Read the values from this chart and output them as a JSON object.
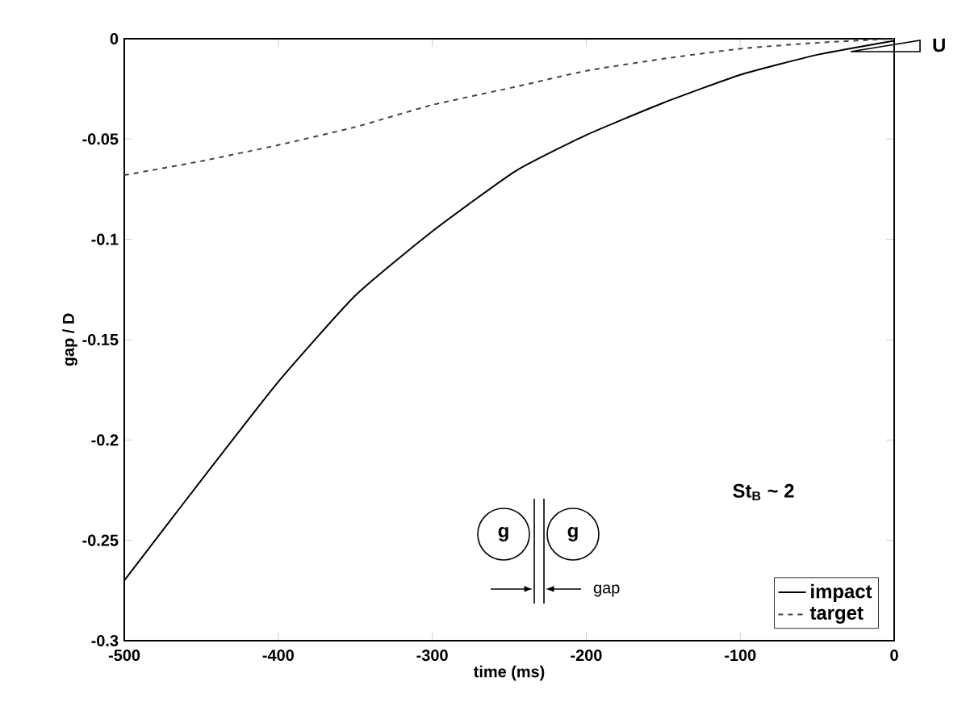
{
  "chart_data": {
    "type": "line",
    "xlabel": "time (ms)",
    "ylabel": "gap / D",
    "xlim": [
      -500,
      0
    ],
    "ylim": [
      -0.3,
      0
    ],
    "xticks": [
      -500,
      -400,
      -300,
      -200,
      -100,
      0
    ],
    "yticks": [
      -0.3,
      -0.25,
      -0.2,
      -0.15,
      -0.1,
      -0.05,
      0
    ],
    "legend": "bottom right",
    "grid": false,
    "annotations": [
      "U",
      "St$_{B}$ ~ 2",
      "g",
      "g",
      "gap"
    ],
    "series": [
      {
        "name": "impact",
        "color": "#000000",
        "line_style": "solid",
        "x": [
          -500,
          -475,
          -450,
          -400,
          -350,
          -300,
          -246,
          -200,
          -150,
          -100,
          -50,
          0
        ],
        "values": [
          -0.27,
          -0.245,
          -0.22,
          -0.171,
          -0.128,
          -0.096,
          -0.066,
          -0.048,
          -0.032,
          -0.018,
          -0.008,
          -0.001
        ]
      },
      {
        "name": "target",
        "color": "#444444",
        "line_style": "dashed",
        "x": [
          -500,
          -450,
          -400,
          -350,
          -300,
          -246,
          -200,
          -150,
          -100,
          -50,
          0
        ],
        "values": [
          -0.068,
          -0.061,
          -0.053,
          -0.044,
          -0.033,
          -0.024,
          -0.016,
          -0.01,
          -0.005,
          -0.002,
          0
        ]
      }
    ]
  }
}
